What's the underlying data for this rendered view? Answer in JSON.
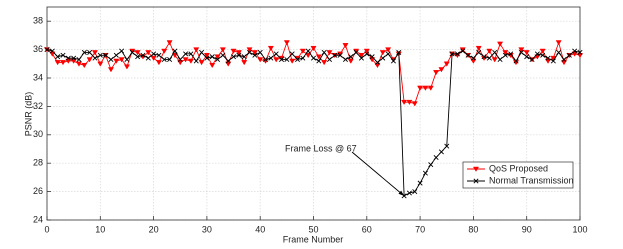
{
  "chart_data": {
    "type": "line",
    "x": [
      0,
      1,
      2,
      3,
      4,
      5,
      6,
      7,
      8,
      9,
      10,
      11,
      12,
      13,
      14,
      15,
      16,
      17,
      18,
      19,
      20,
      21,
      22,
      23,
      24,
      25,
      26,
      27,
      28,
      29,
      30,
      31,
      32,
      33,
      34,
      35,
      36,
      37,
      38,
      39,
      40,
      41,
      42,
      43,
      44,
      45,
      46,
      47,
      48,
      49,
      50,
      51,
      52,
      53,
      54,
      55,
      56,
      57,
      58,
      59,
      60,
      61,
      62,
      63,
      64,
      65,
      66,
      67,
      68,
      69,
      70,
      71,
      72,
      73,
      74,
      75,
      76,
      77,
      78,
      79,
      80,
      81,
      82,
      83,
      84,
      85,
      86,
      87,
      88,
      89,
      90,
      91,
      92,
      93,
      94,
      95,
      96,
      97,
      98,
      99,
      100
    ],
    "series": [
      {
        "name": "QoS Proposed",
        "color": "#ff0000",
        "marker": "triangle-down",
        "values": [
          36.0,
          35.7,
          35.1,
          35.1,
          35.2,
          35.2,
          35.0,
          34.9,
          35.3,
          35.8,
          35.0,
          35.6,
          34.6,
          35.2,
          35.3,
          34.8,
          35.9,
          35.8,
          35.5,
          35.8,
          35.4,
          35.1,
          35.9,
          36.5,
          35.6,
          35.1,
          35.3,
          35.2,
          36.0,
          35.1,
          35.6,
          34.9,
          35.5,
          36.0,
          35.0,
          35.9,
          35.8,
          35.1,
          36.0,
          35.8,
          35.3,
          35.2,
          36.1,
          35.3,
          35.4,
          36.5,
          35.2,
          35.4,
          35.9,
          35.6,
          36.1,
          35.5,
          35.1,
          35.8,
          35.6,
          35.7,
          36.3,
          35.2,
          35.9,
          35.6,
          35.9,
          35.3,
          34.9,
          35.8,
          36.0,
          35.3,
          35.7,
          32.3,
          32.3,
          32.2,
          33.3,
          33.3,
          33.3,
          34.4,
          34.6,
          35.0,
          35.7,
          35.6,
          36.0,
          35.6,
          35.2,
          36.1,
          35.4,
          35.9,
          35.3,
          36.4,
          35.8,
          35.6,
          35.1,
          36.0,
          35.8,
          35.3,
          35.5,
          35.9,
          35.2,
          35.4,
          36.5,
          35.1,
          35.6,
          35.7,
          35.6
        ]
      },
      {
        "name": "Normal Transmission",
        "color": "#000000",
        "marker": "x",
        "values": [
          36.0,
          35.9,
          35.5,
          35.6,
          35.4,
          35.4,
          35.3,
          35.8,
          35.8,
          35.4,
          35.6,
          35.6,
          35.3,
          35.6,
          35.9,
          35.3,
          35.8,
          35.5,
          35.6,
          35.4,
          35.7,
          35.6,
          35.3,
          35.3,
          35.9,
          35.3,
          35.7,
          35.7,
          35.2,
          35.8,
          35.4,
          35.5,
          35.3,
          35.6,
          35.2,
          35.5,
          35.6,
          35.5,
          35.8,
          35.6,
          35.8,
          35.3,
          35.4,
          35.7,
          35.3,
          35.3,
          35.7,
          35.3,
          35.4,
          35.9,
          35.4,
          35.2,
          35.8,
          35.3,
          35.6,
          35.6,
          35.3,
          35.5,
          35.8,
          35.4,
          35.7,
          35.5,
          35.1,
          35.4,
          35.7,
          35.2,
          35.8,
          25.7,
          25.9,
          26.0,
          26.6,
          27.3,
          27.9,
          28.4,
          28.8,
          29.2,
          35.7,
          35.7,
          35.9,
          35.6,
          35.4,
          35.8,
          35.5,
          35.4,
          35.8,
          35.3,
          35.6,
          35.7,
          35.2,
          35.8,
          35.5,
          35.3,
          35.7,
          35.6,
          35.4,
          35.2,
          35.8,
          35.3,
          35.6,
          35.9,
          35.8
        ]
      }
    ],
    "xlabel": "Frame Number",
    "ylabel": "PSNR (dB)",
    "xlim": [
      0,
      100
    ],
    "xticks": [
      0,
      10,
      20,
      30,
      40,
      50,
      60,
      70,
      80,
      90,
      100
    ],
    "ylim": [
      24,
      39
    ],
    "yticks": [
      24,
      26,
      28,
      30,
      32,
      34,
      36,
      38
    ],
    "grid": true,
    "legend": "lower right",
    "annotation": {
      "text": "Frame Loss @ 67",
      "x": 67,
      "y": 25.7
    }
  }
}
